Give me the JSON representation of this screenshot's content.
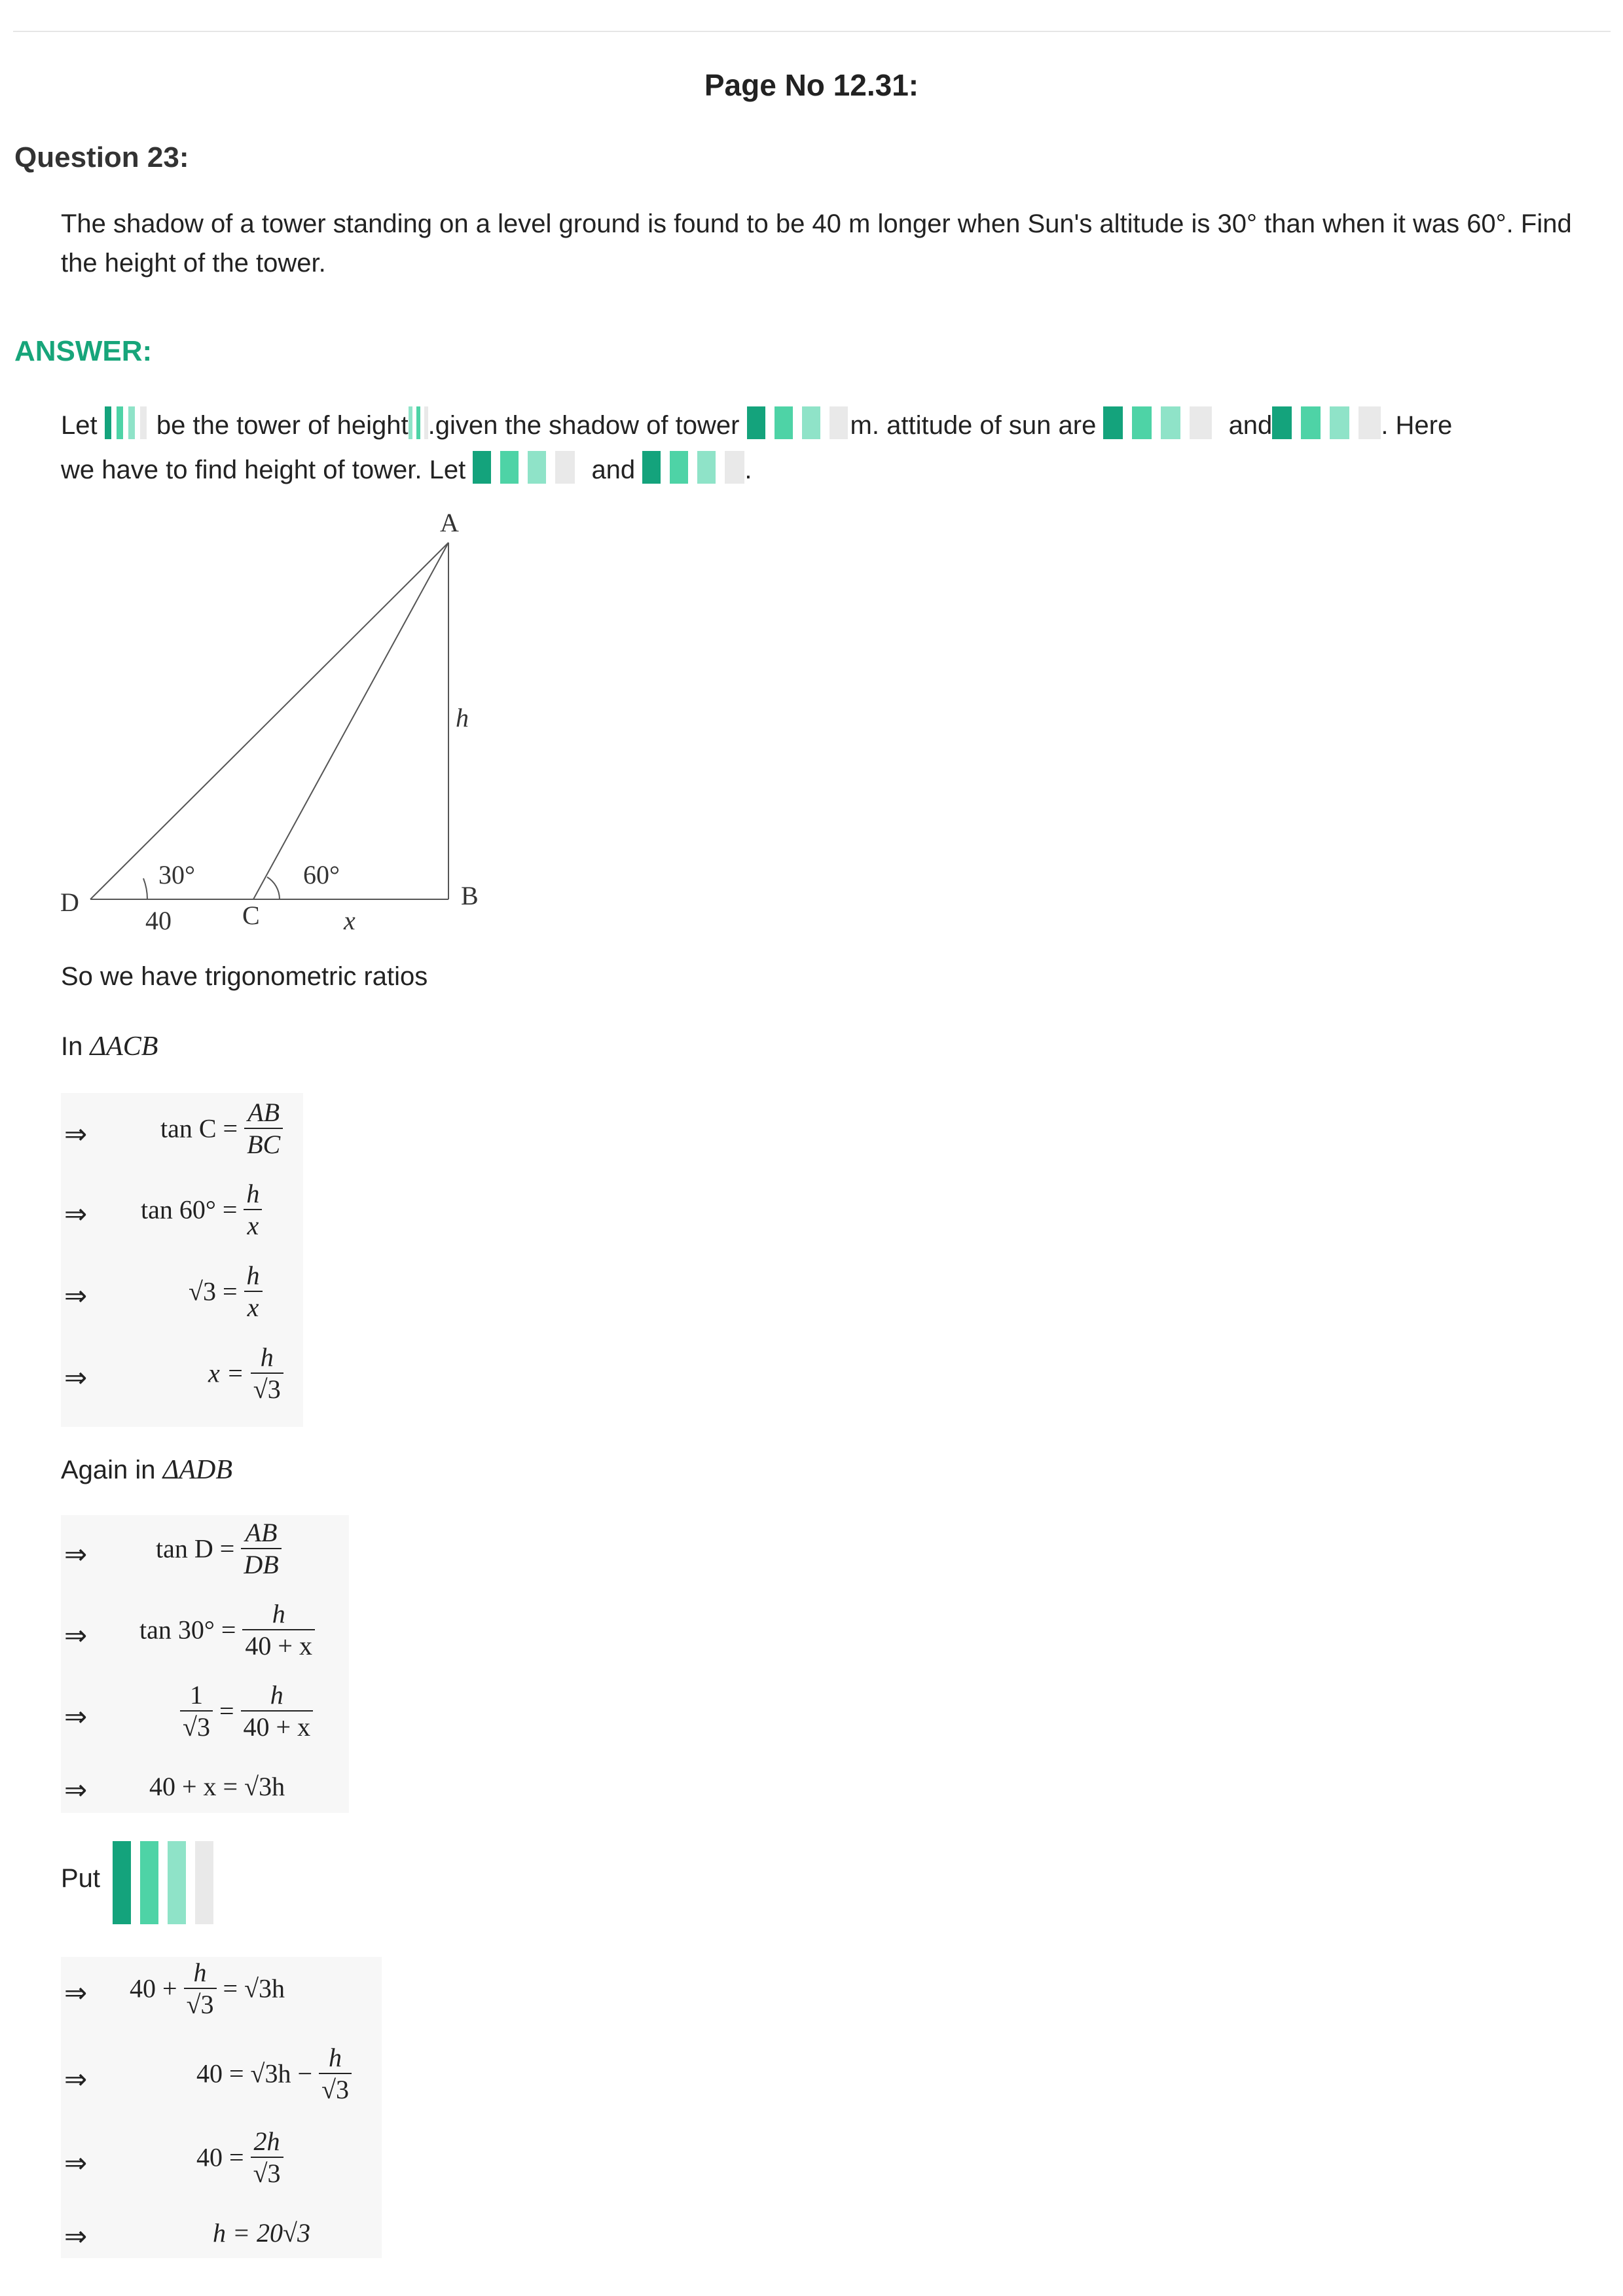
{
  "header": {
    "page_no": "Page No 12.31:"
  },
  "question": {
    "title": "Question 23:",
    "text": "The shadow of a tower standing on a level ground is found to be 40 m longer when Sun's  altitude is 30° than when it was 60°. Find the height of the tower."
  },
  "answer": {
    "title": "ANSWER:",
    "para_let": "Let",
    "para_p1": "be the tower of height",
    "para_p2": ".given the shadow of tower",
    "para_p3": "m. attitude of sun are",
    "para_and1": "and",
    "para_here": ". Here",
    "para_line2": "we have to find height of tower. Let",
    "para_and2": "and",
    "para_end": ".",
    "ratios_text": "So we have trigonometric ratios",
    "in_text": "In",
    "triangle1": "ΔACB",
    "again_text": "Again in",
    "triangle2": "ΔADB",
    "put_text": "Put"
  },
  "diagram": {
    "label_A": "A",
    "label_B": "B",
    "label_C": "C",
    "label_D": "D",
    "label_h": "h",
    "angle_30": "30°",
    "angle_60": "60°",
    "seg_40": "40",
    "seg_x": "x"
  },
  "math": {
    "arrow": "⇒",
    "s1": {
      "lhs": "tan C =",
      "num": "AB",
      "den": "BC"
    },
    "s2": {
      "lhs": "tan 60° =",
      "num": "h",
      "den": "x"
    },
    "s3": {
      "lhs": "√3 =",
      "num": "h",
      "den": "x"
    },
    "s4": {
      "lhs": "x =",
      "num": "h",
      "den": "√3"
    },
    "s5": {
      "lhs": "tan D =",
      "num": "AB",
      "den": "DB"
    },
    "s6": {
      "lhs": "tan 30° =",
      "num": "h",
      "den": "40 + x"
    },
    "s7": {
      "lnum": "1",
      "lden": "√3",
      "eq": "=",
      "num": "h",
      "den": "40 + x"
    },
    "s8": {
      "text": "40 + x = √3h"
    },
    "s9": {
      "pre": "40 +",
      "num": "h",
      "den": "√3",
      "post": "= √3h"
    },
    "s10": {
      "pre": "40 = √3h −",
      "num": "h",
      "den": "√3"
    },
    "s11": {
      "pre": "40 =",
      "num": "2h",
      "den": "√3"
    },
    "s12": {
      "text": "h = 20√3"
    }
  },
  "colors": {
    "answer_heading": "#17a57a",
    "block_dark": "#14a37c",
    "block_mid": "#4ed3a6",
    "block_light": "#8fe3c8",
    "block_gray": "#e9e9e9"
  }
}
